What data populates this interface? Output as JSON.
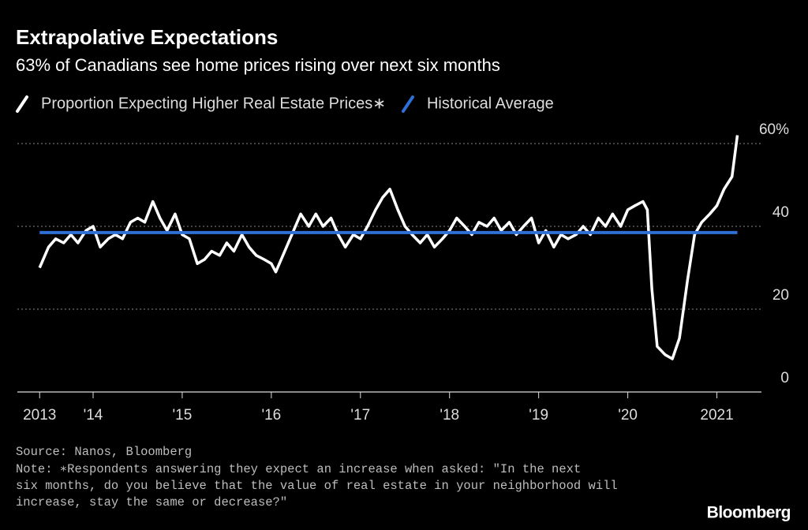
{
  "chart_data": {
    "type": "line",
    "title": "Extrapolative Expectations",
    "subtitle": "63% of Canadians see home prices rising over next six months",
    "xlim": [
      2013.15,
      2021.5
    ],
    "xticks": [
      {
        "value": 2013.4,
        "label": "2013"
      },
      {
        "value": 2014,
        "label": "'14"
      },
      {
        "value": 2015,
        "label": "'15"
      },
      {
        "value": 2016,
        "label": "'16"
      },
      {
        "value": 2017,
        "label": "'17"
      },
      {
        "value": 2018,
        "label": "'18"
      },
      {
        "value": 2019,
        "label": "'19"
      },
      {
        "value": 2020,
        "label": "'20"
      },
      {
        "value": 2021,
        "label": "2021"
      }
    ],
    "ylim": [
      0,
      64
    ],
    "yticks": [
      0,
      20,
      40,
      {
        "value": 60,
        "label": "60%"
      }
    ],
    "grid": true,
    "series": [
      {
        "name": "Proportion Expecting Higher Real Estate Prices∗",
        "color": "#ffffff",
        "x": [
          2013.4,
          2013.5,
          2013.58,
          2013.67,
          2013.75,
          2013.83,
          2013.92,
          2014.0,
          2014.08,
          2014.17,
          2014.25,
          2014.33,
          2014.42,
          2014.5,
          2014.58,
          2014.67,
          2014.75,
          2014.83,
          2014.92,
          2015.0,
          2015.08,
          2015.17,
          2015.25,
          2015.33,
          2015.42,
          2015.5,
          2015.58,
          2015.67,
          2015.75,
          2015.83,
          2015.92,
          2016.0,
          2016.05,
          2016.17,
          2016.25,
          2016.33,
          2016.42,
          2016.5,
          2016.58,
          2016.67,
          2016.75,
          2016.83,
          2016.92,
          2017.0,
          2017.08,
          2017.17,
          2017.25,
          2017.33,
          2017.42,
          2017.5,
          2017.58,
          2017.67,
          2017.75,
          2017.83,
          2017.92,
          2018.0,
          2018.08,
          2018.17,
          2018.25,
          2018.33,
          2018.42,
          2018.5,
          2018.58,
          2018.67,
          2018.75,
          2018.83,
          2018.92,
          2019.0,
          2019.08,
          2019.17,
          2019.25,
          2019.33,
          2019.42,
          2019.5,
          2019.58,
          2019.67,
          2019.75,
          2019.83,
          2019.92,
          2020.0,
          2020.08,
          2020.17,
          2020.22,
          2020.27,
          2020.33,
          2020.42,
          2020.5,
          2020.58,
          2020.67,
          2020.75,
          2020.83,
          2020.92,
          2021.0,
          2021.08,
          2021.17,
          2021.23
        ],
        "values": [
          30,
          35,
          37,
          36,
          38,
          36,
          39,
          40,
          35,
          37,
          38,
          37,
          41,
          42,
          41,
          46,
          42,
          39,
          43,
          38,
          37,
          31,
          32,
          34,
          33,
          36,
          34,
          38,
          35,
          33,
          32,
          31,
          29,
          35,
          39,
          43,
          40,
          43,
          40,
          42,
          38,
          35,
          38,
          37,
          40,
          44,
          47,
          49,
          44,
          40,
          38,
          36,
          38,
          35,
          37,
          39,
          42,
          40,
          38,
          41,
          40,
          42,
          39,
          41,
          38,
          40,
          42,
          36,
          39,
          35,
          38,
          37,
          38,
          40,
          38,
          42,
          40,
          43,
          40,
          44,
          45,
          46,
          44,
          25,
          11,
          9,
          8,
          13,
          27,
          38,
          41,
          43,
          45,
          49,
          52,
          62
        ]
      },
      {
        "name": "Historical Average",
        "color": "#2f6fd8",
        "x": [
          2013.4,
          2021.23
        ],
        "values": [
          38.5,
          38.5
        ]
      }
    ],
    "source": "Source: Nanos, Bloomberg",
    "note": [
      "Note: ∗Respondents answering they expect an increase when asked: \"In the next",
      "six months, do you believe that the value of real estate in your neighborhood will",
      "increase, stay the same or decrease?\""
    ],
    "logo": "Bloomberg"
  }
}
